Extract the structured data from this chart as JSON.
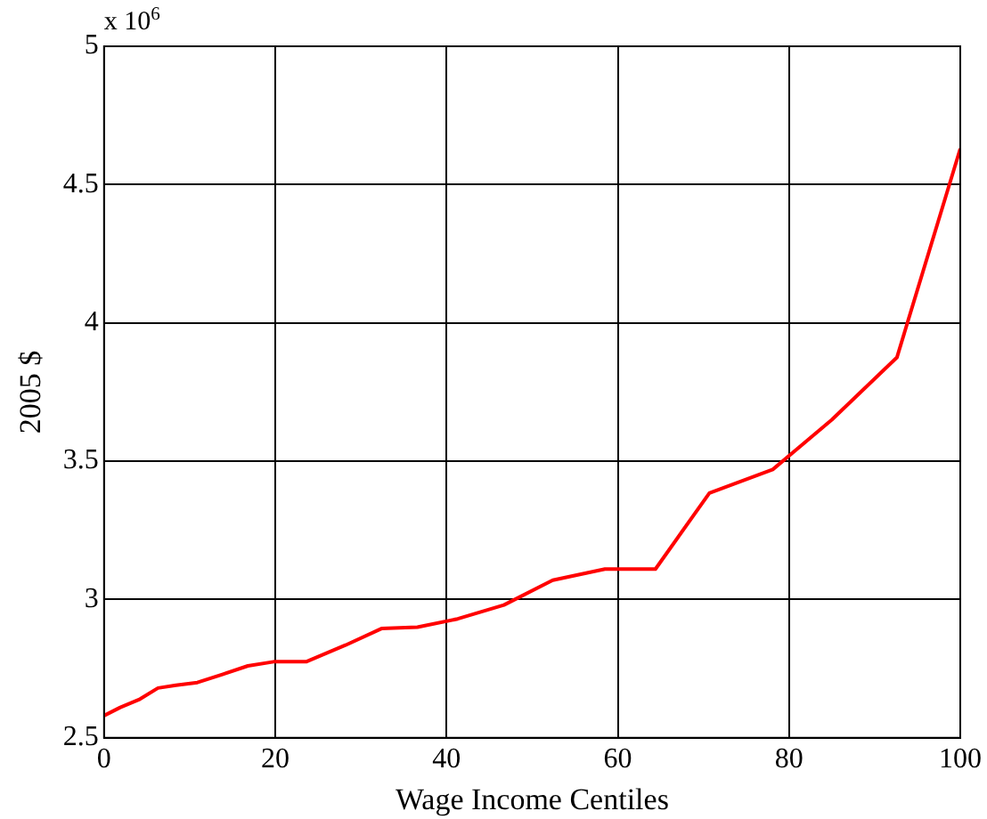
{
  "chart_data": {
    "type": "line",
    "xlabel": "Wage Income Centiles",
    "ylabel": "2005 $",
    "annotations": [
      "x 10$^{6}$"
    ],
    "x": [
      0,
      1.9,
      4.2,
      6.3,
      8.4,
      10.9,
      13.9,
      16.8,
      19.8,
      23.6,
      28.2,
      32.4,
      36.6,
      41.3,
      46.7,
      52.4,
      58.5,
      64.4,
      70.7,
      78.1,
      85,
      92.6,
      100
    ],
    "series": [
      {
        "color": "#ff0000",
        "values": [
          2.58,
          2.61,
          2.64,
          2.68,
          2.69,
          2.7,
          2.73,
          2.76,
          2.775,
          2.775,
          2.835,
          2.895,
          2.9,
          2.93,
          2.98,
          3.07,
          3.11,
          3.11,
          3.385,
          3.47,
          3.65,
          3.875,
          4.63
        ]
      }
    ],
    "xlim": [
      0,
      100
    ],
    "xticks": [
      0,
      20,
      40,
      60,
      80,
      100
    ],
    "ylim": [
      2.5,
      5
    ],
    "yticks": [
      2.5,
      3,
      3.5,
      4,
      4.5,
      5
    ],
    "grid": true,
    "legend": false,
    "marker": "none",
    "line_style": "solid"
  }
}
